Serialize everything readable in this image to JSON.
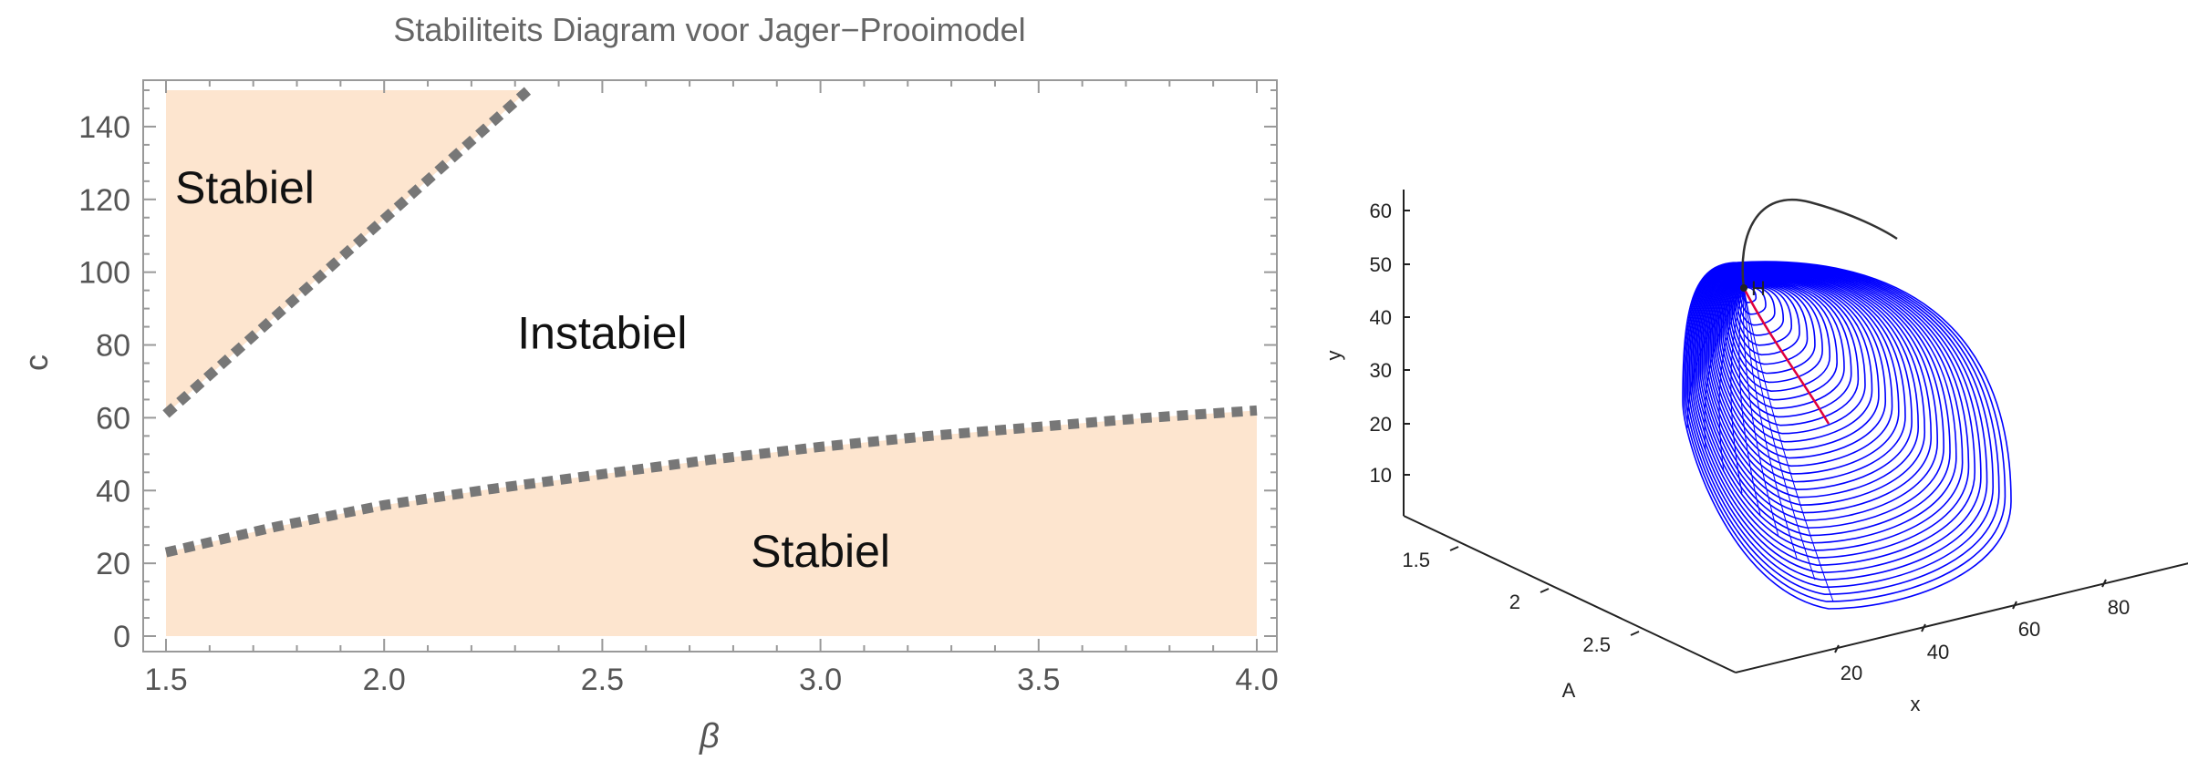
{
  "chart_data": [
    {
      "type": "area",
      "title": "Stabiliteits Diagram voor Jager−Prooimodel",
      "xlabel": "β",
      "ylabel": "c",
      "xlim": [
        1.5,
        4.0
      ],
      "ylim": [
        0,
        150
      ],
      "xticks": [
        "1.5",
        "2.0",
        "2.5",
        "3.0",
        "3.5",
        "4.0"
      ],
      "yticks": [
        "0",
        "20",
        "40",
        "60",
        "80",
        "100",
        "120",
        "140"
      ],
      "region_color": "#fde5cf",
      "boundary_color": "#777777",
      "upper_boundary": {
        "x": [
          1.5,
          2.33
        ],
        "y": [
          61,
          150
        ]
      },
      "lower_boundary": {
        "x": [
          1.5,
          1.75,
          2.0,
          2.25,
          2.5,
          2.75,
          3.0,
          3.25,
          3.5,
          3.75,
          4.0
        ],
        "y": [
          23,
          30,
          36,
          40.5,
          44.5,
          48.5,
          52,
          55,
          57.5,
          60,
          62
        ]
      },
      "regions": [
        {
          "label": "Stabiel",
          "x": 1.7,
          "y": 119
        },
        {
          "label": "Instabiel",
          "x": 2.5,
          "y": 79
        },
        {
          "label": "Stabiel",
          "x": 3.0,
          "y": 19
        }
      ]
    },
    {
      "type": "line",
      "xlabel": "x",
      "ylabel": "y",
      "zlabel": "A",
      "xticks": [
        "20",
        "40",
        "60",
        "80"
      ],
      "yticks": [
        "10",
        "20",
        "30",
        "40",
        "50",
        "60"
      ],
      "zticks": [
        "1.5",
        "2",
        "2.5"
      ],
      "point_label": "H",
      "spiral_color": "#0000ff",
      "path_color": "#e0003c",
      "trajectory_color": "#333333"
    }
  ]
}
